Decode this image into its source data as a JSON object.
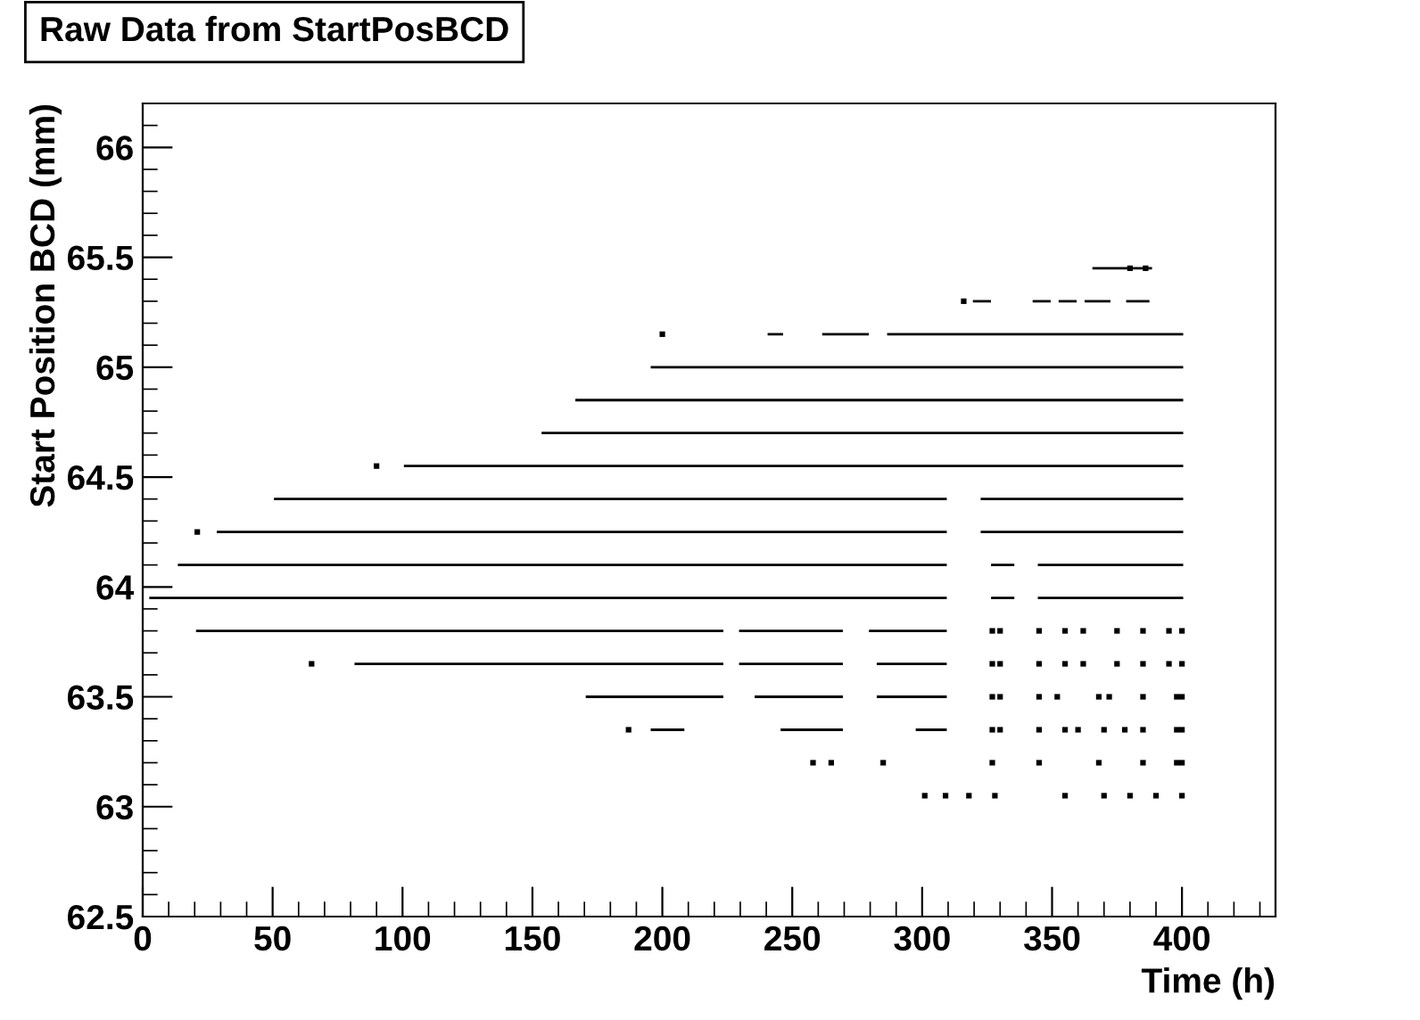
{
  "chart_data": {
    "type": "line",
    "title": "Raw Data from StartPosBCD",
    "xlabel": "Time (h)",
    "ylabel": "Start Position BCD (mm)",
    "xlim": [
      0,
      436
    ],
    "xticks": [
      0,
      50,
      100,
      150,
      200,
      250,
      300,
      350,
      400
    ],
    "ylim": [
      62.5,
      66.2
    ],
    "yticks": [
      62.5,
      63,
      63.5,
      64,
      64.5,
      65,
      65.5,
      66
    ],
    "grid": false,
    "line_style": "solid",
    "series": [
      {
        "color": "#000000",
        "x": [
          366,
          388
        ],
        "values": [
          65.45,
          65.45
        ]
      },
      {
        "color": "#000000",
        "x": [
          320,
          326,
          330,
          343,
          349,
          350,
          353,
          359,
          360,
          363,
          372,
          375,
          379,
          387
        ],
        "values": [
          65.3,
          65.3,
          null,
          65.3,
          65.3,
          null,
          65.3,
          65.3,
          null,
          65.3,
          65.3,
          null,
          65.3,
          65.3
        ]
      },
      {
        "color": "#000000",
        "x": [
          241,
          246,
          247,
          262,
          263,
          279,
          283,
          287,
          400
        ],
        "values": [
          65.15,
          65.15,
          null,
          65.15,
          65.15,
          65.15,
          null,
          65.15,
          65.15
        ]
      },
      {
        "color": "#000000",
        "x": [
          196,
          400
        ],
        "values": [
          65.0,
          65.0
        ]
      },
      {
        "color": "#000000",
        "x": [
          167,
          400
        ],
        "values": [
          64.85,
          64.85
        ]
      },
      {
        "color": "#000000",
        "x": [
          154,
          400
        ],
        "values": [
          64.7,
          64.7
        ]
      },
      {
        "color": "#000000",
        "x": [
          101,
          400
        ],
        "values": [
          64.55,
          64.55
        ]
      },
      {
        "color": "#000000",
        "x": [
          51,
          309,
          316,
          323,
          400
        ],
        "values": [
          64.4,
          64.4,
          null,
          64.4,
          64.4
        ]
      },
      {
        "color": "#000000",
        "x": [
          29,
          309,
          316,
          323,
          400
        ],
        "values": [
          64.25,
          64.25,
          null,
          64.25,
          64.25
        ]
      },
      {
        "color": "#000000",
        "x": [
          14,
          309,
          318,
          327,
          335,
          340,
          345,
          400
        ],
        "values": [
          64.1,
          64.1,
          null,
          64.1,
          64.1,
          null,
          64.1,
          64.1
        ]
      },
      {
        "color": "#000000",
        "x": [
          3,
          309,
          318,
          327,
          335,
          340,
          345,
          400
        ],
        "values": [
          63.95,
          63.95,
          null,
          63.95,
          63.95,
          null,
          63.95,
          63.95
        ]
      },
      {
        "color": "#000000",
        "x": [
          21,
          223,
          226,
          230,
          269,
          275,
          280,
          309
        ],
        "values": [
          63.8,
          63.8,
          null,
          63.8,
          63.8,
          null,
          63.8,
          63.8
        ]
      },
      {
        "color": "#000000",
        "x": [
          82,
          223,
          226,
          230,
          269,
          275,
          283,
          309
        ],
        "values": [
          63.65,
          63.65,
          null,
          63.65,
          63.65,
          null,
          63.65,
          63.65
        ]
      },
      {
        "color": "#000000",
        "x": [
          171,
          223,
          230,
          236,
          269,
          275,
          283,
          309
        ],
        "values": [
          63.5,
          63.5,
          null,
          63.5,
          63.5,
          null,
          63.5,
          63.5
        ]
      },
      {
        "color": "#000000",
        "x": [
          196,
          208,
          215,
          246,
          269,
          278,
          298,
          309
        ],
        "values": [
          63.35,
          63.35,
          null,
          63.35,
          63.35,
          null,
          63.35,
          63.35
        ]
      },
      {
        "color": "#000000",
        "type": "scatter",
        "x": [
          21,
          316,
          380,
          386,
          200,
          65,
          90,
          187,
          258,
          265,
          285,
          301,
          309,
          327,
          330,
          345,
          355,
          362,
          375,
          385,
          395,
          400,
          327,
          330,
          345,
          355,
          362,
          375,
          385,
          395,
          400,
          327,
          330,
          345,
          352,
          368,
          372,
          385,
          398,
          400,
          327,
          330,
          345,
          355,
          360,
          370,
          378,
          385,
          398,
          400,
          327,
          345,
          368,
          385,
          398,
          400,
          318,
          328,
          355,
          370,
          380,
          390,
          400
        ],
        "values": [
          64.25,
          65.3,
          65.45,
          65.45,
          65.15,
          63.65,
          64.55,
          63.35,
          63.2,
          63.2,
          63.2,
          63.05,
          63.05,
          63.8,
          63.8,
          63.8,
          63.8,
          63.8,
          63.8,
          63.8,
          63.8,
          63.8,
          63.65,
          63.65,
          63.65,
          63.65,
          63.65,
          63.65,
          63.65,
          63.65,
          63.65,
          63.5,
          63.5,
          63.5,
          63.5,
          63.5,
          63.5,
          63.5,
          63.5,
          63.5,
          63.35,
          63.35,
          63.35,
          63.35,
          63.35,
          63.35,
          63.35,
          63.35,
          63.35,
          63.35,
          63.2,
          63.2,
          63.2,
          63.2,
          63.2,
          63.2,
          63.05,
          63.05,
          63.05,
          63.05,
          63.05,
          63.05,
          63.05
        ]
      }
    ]
  }
}
